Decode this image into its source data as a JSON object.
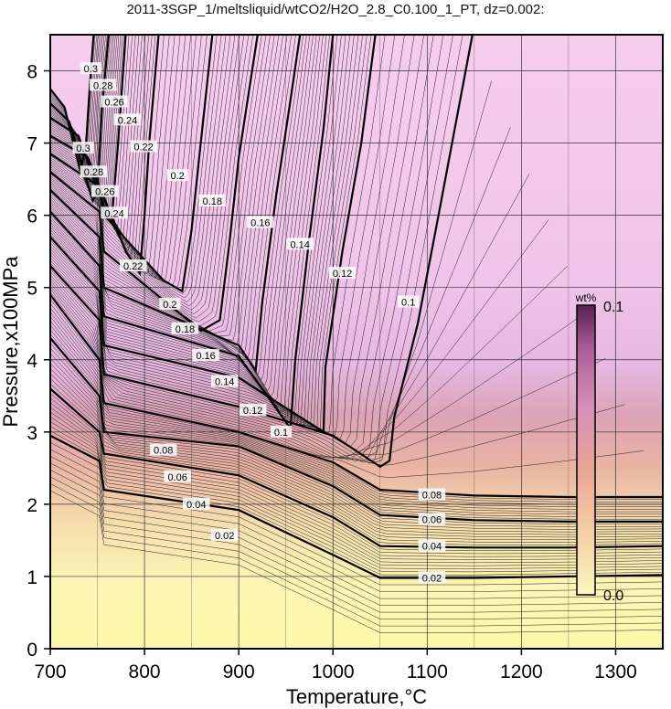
{
  "chart_data": {
    "type": "contour",
    "title": "2011-3SGP_1/meltsliquid/wtCO2/H2O_2.8_C0.100_1_PT, dz=0.002:",
    "xlabel": "Temperature,°C",
    "ylabel": "Pressure,x100MPa",
    "xlim": [
      700,
      1350
    ],
    "ylim": [
      0,
      8.5
    ],
    "x_ticks": [
      700,
      800,
      900,
      1000,
      1100,
      1200,
      1300
    ],
    "y_ticks": [
      0,
      1,
      2,
      3,
      4,
      5,
      6,
      7,
      8
    ],
    "grid": true,
    "colorbar": {
      "title": "wt%",
      "min_label": "0.0",
      "max_label": "0.1",
      "colors": [
        "#fbf7c0",
        "#f4c8a3",
        "#e8a298",
        "#d68fb8",
        "#a85f96",
        "#5a1f50"
      ]
    },
    "contour_interval": 0.002,
    "bold_contours": [
      {
        "level": "0.02",
        "path": [
          [
            700,
            2.95
          ],
          [
            752,
            2.6
          ],
          [
            757,
            2.2
          ],
          [
            900,
            1.92
          ],
          [
            1000,
            1.3
          ],
          [
            1050,
            0.98
          ],
          [
            1150,
            0.98
          ],
          [
            1250,
            1.0
          ],
          [
            1350,
            1.02
          ]
        ]
      },
      {
        "level": "0.04",
        "path": [
          [
            700,
            3.6
          ],
          [
            752,
            3.0
          ],
          [
            757,
            2.7
          ],
          [
            900,
            2.4
          ],
          [
            1000,
            1.82
          ],
          [
            1050,
            1.42
          ],
          [
            1150,
            1.4
          ],
          [
            1250,
            1.4
          ],
          [
            1350,
            1.42
          ]
        ]
      },
      {
        "level": "0.06",
        "path": [
          [
            700,
            4.3
          ],
          [
            752,
            3.5
          ],
          [
            757,
            3.0
          ],
          [
            900,
            2.8
          ],
          [
            1000,
            2.25
          ],
          [
            1050,
            1.85
          ],
          [
            1150,
            1.78
          ],
          [
            1250,
            1.76
          ],
          [
            1350,
            1.76
          ]
        ]
      },
      {
        "level": "0.08",
        "path": [
          [
            700,
            4.9
          ],
          [
            752,
            4.0
          ],
          [
            757,
            3.4
          ],
          [
            900,
            3.0
          ],
          [
            1000,
            2.58
          ],
          [
            1050,
            2.2
          ],
          [
            1150,
            2.12
          ],
          [
            1250,
            2.1
          ],
          [
            1350,
            2.1
          ]
        ]
      },
      {
        "level": "0.1",
        "path": [
          [
            700,
            5.3
          ],
          [
            752,
            4.55
          ],
          [
            757,
            3.8
          ],
          [
            900,
            3.35
          ],
          [
            1000,
            2.95
          ],
          [
            1050,
            2.52
          ],
          [
            1060,
            2.6
          ],
          [
            1065,
            3.2
          ],
          [
            1090,
            4.5
          ],
          [
            1112,
            6.0
          ],
          [
            1135,
            7.6
          ],
          [
            1148,
            8.5
          ]
        ]
      },
      {
        "level": "0.12",
        "path": [
          [
            700,
            5.7
          ],
          [
            752,
            4.95
          ],
          [
            757,
            4.2
          ],
          [
            900,
            3.75
          ],
          [
            990,
            3.0
          ],
          [
            992,
            3.9
          ],
          [
            1010,
            5.5
          ],
          [
            1030,
            7.0
          ],
          [
            1045,
            8.5
          ]
        ]
      },
      {
        "level": "0.14",
        "path": [
          [
            700,
            6.05
          ],
          [
            752,
            5.3
          ],
          [
            757,
            4.6
          ],
          [
            900,
            4.05
          ],
          [
            955,
            3.05
          ],
          [
            960,
            4.0
          ],
          [
            975,
            5.7
          ],
          [
            990,
            7.2
          ],
          [
            1000,
            8.5
          ]
        ]
      },
      {
        "level": "0.16",
        "path": [
          [
            700,
            6.35
          ],
          [
            752,
            5.7
          ],
          [
            757,
            5.0
          ],
          [
            900,
            4.2
          ],
          [
            918,
            3.85
          ],
          [
            925,
            4.8
          ],
          [
            940,
            6.3
          ],
          [
            955,
            7.6
          ],
          [
            965,
            8.5
          ]
        ]
      },
      {
        "level": "0.18",
        "path": [
          [
            700,
            6.6
          ],
          [
            752,
            6.05
          ],
          [
            757,
            5.5
          ],
          [
            860,
            4.4
          ],
          [
            880,
            4.55
          ],
          [
            890,
            5.6
          ],
          [
            900,
            6.8
          ],
          [
            920,
            8.5
          ]
        ]
      },
      {
        "level": "0.2",
        "path": [
          [
            700,
            6.85
          ],
          [
            752,
            6.4
          ],
          [
            757,
            6.0
          ],
          [
            820,
            5.1
          ],
          [
            840,
            4.95
          ],
          [
            850,
            5.8
          ],
          [
            858,
            6.8
          ],
          [
            872,
            8.5
          ]
        ]
      },
      {
        "level": "0.22",
        "path": [
          [
            700,
            7.1
          ],
          [
            740,
            6.8
          ],
          [
            780,
            5.5
          ],
          [
            795,
            5.2
          ],
          [
            800,
            6.0
          ],
          [
            805,
            7.0
          ],
          [
            815,
            8.5
          ]
        ]
      },
      {
        "level": "0.24",
        "path": [
          [
            700,
            7.35
          ],
          [
            730,
            7.1
          ],
          [
            760,
            6.0
          ],
          [
            765,
            5.9
          ],
          [
            772,
            7.0
          ],
          [
            780,
            8.5
          ]
        ]
      },
      {
        "level": "0.26",
        "path": [
          [
            700,
            7.55
          ],
          [
            720,
            7.3
          ],
          [
            745,
            6.2
          ],
          [
            750,
            6.3
          ],
          [
            755,
            7.5
          ],
          [
            762,
            8.5
          ]
        ]
      },
      {
        "level": "0.28",
        "path": [
          [
            700,
            7.75
          ],
          [
            715,
            7.5
          ],
          [
            732,
            6.6
          ],
          [
            738,
            7.0
          ],
          [
            742,
            7.8
          ],
          [
            746,
            8.5
          ]
        ]
      }
    ],
    "contour_labels": [
      {
        "text": "0.02",
        "at": [
          1105,
          0.98
        ]
      },
      {
        "text": "0.04",
        "at": [
          1105,
          1.42
        ]
      },
      {
        "text": "0.06",
        "at": [
          1105,
          1.79
        ]
      },
      {
        "text": "0.08",
        "at": [
          1105,
          2.13
        ]
      },
      {
        "text": "0.02",
        "at": [
          885,
          1.57
        ]
      },
      {
        "text": "0.04",
        "at": [
          855,
          2.0
        ]
      },
      {
        "text": "0.06",
        "at": [
          835,
          2.38
        ]
      },
      {
        "text": "0.08",
        "at": [
          820,
          2.75
        ]
      },
      {
        "text": "0.1",
        "at": [
          945,
          3.0
        ]
      },
      {
        "text": "0.12",
        "at": [
          915,
          3.3
        ]
      },
      {
        "text": "0.14",
        "at": [
          885,
          3.7
        ]
      },
      {
        "text": "0.16",
        "at": [
          865,
          4.06
        ]
      },
      {
        "text": "0.18",
        "at": [
          843,
          4.43
        ]
      },
      {
        "text": "0.2",
        "at": [
          827,
          4.77
        ]
      },
      {
        "text": "0.1",
        "at": [
          1080,
          4.8
        ]
      },
      {
        "text": "0.12",
        "at": [
          1010,
          5.2
        ]
      },
      {
        "text": "0.14",
        "at": [
          965,
          5.6
        ]
      },
      {
        "text": "0.16",
        "at": [
          923,
          5.9
        ]
      },
      {
        "text": "0.18",
        "at": [
          872,
          6.2
        ]
      },
      {
        "text": "0.2",
        "at": [
          835,
          6.55
        ]
      },
      {
        "text": "0.22",
        "at": [
          788,
          5.3
        ]
      },
      {
        "text": "0.22",
        "at": [
          799,
          6.95
        ]
      },
      {
        "text": "0.24",
        "at": [
          768,
          6.03
        ]
      },
      {
        "text": "0.24",
        "at": [
          782,
          7.32
        ]
      },
      {
        "text": "0.26",
        "at": [
          758,
          6.33
        ]
      },
      {
        "text": "0.26",
        "at": [
          768,
          7.57
        ]
      },
      {
        "text": "0.28",
        "at": [
          746,
          6.6
        ]
      },
      {
        "text": "0.28",
        "at": [
          756,
          7.8
        ]
      },
      {
        "text": "0.3",
        "at": [
          735,
          6.93
        ]
      },
      {
        "text": "0.3",
        "at": [
          743,
          8.03
        ]
      }
    ]
  }
}
